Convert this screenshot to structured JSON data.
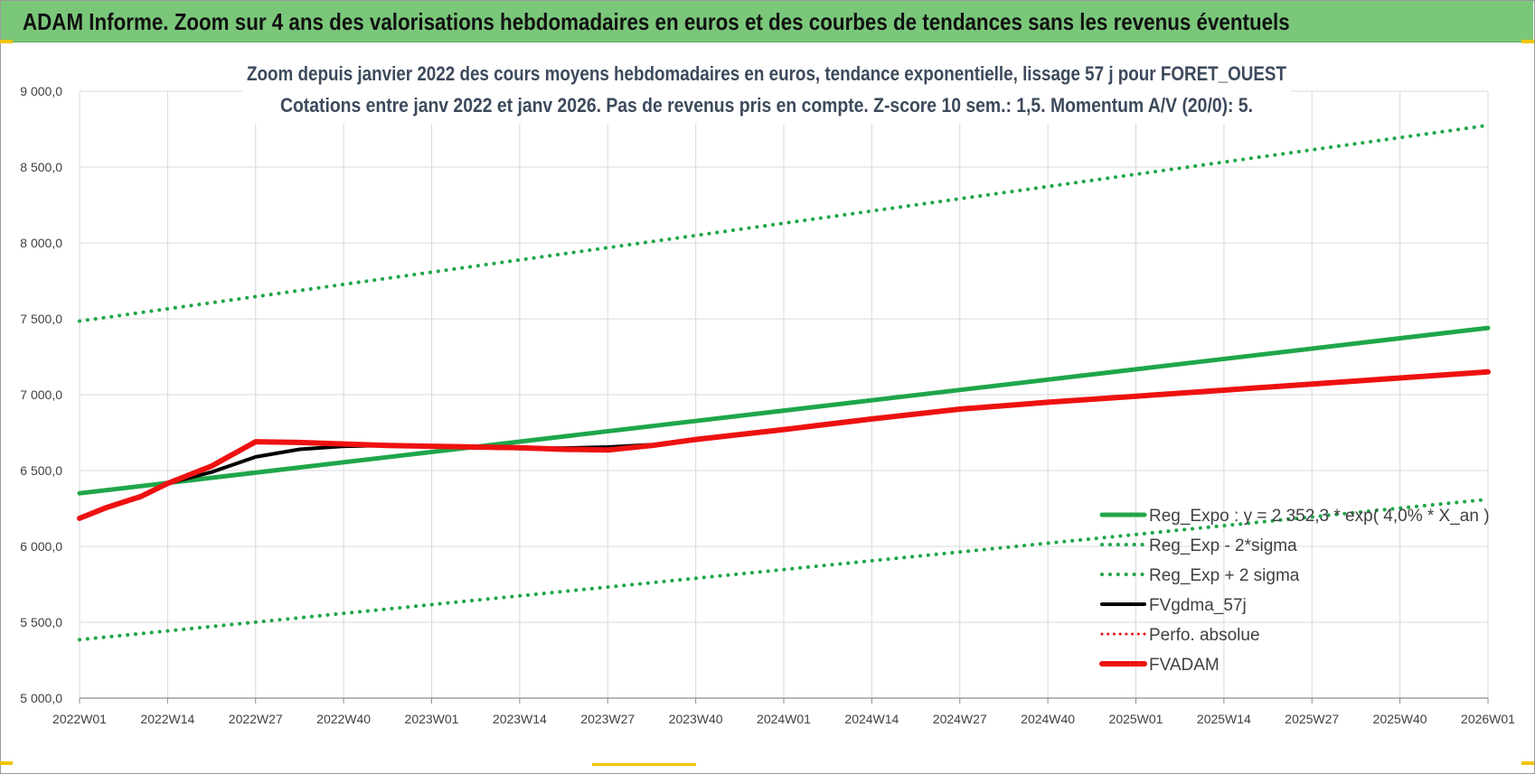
{
  "banner": {
    "title": "ADAM Informe. Zoom sur 4 ans des valorisations hebdomadaires en euros et des courbes de tendances sans les revenus éventuels"
  },
  "chart_data": {
    "type": "line",
    "title": [
      "Zoom depuis janvier 2022 des cours moyens hebdomadaires en euros, tendance exponentielle, lissage 57 j pour FORET_OUEST",
      "Cotations entre janv 2022 et janv 2026. Pas de revenus pris en compte. Z-score 10 sem.: 1,5. Momentum A/V (20/0): 5."
    ],
    "x_categories": [
      "2022W01",
      "2022W14",
      "2022W27",
      "2022W40",
      "2023W01",
      "2023W14",
      "2023W27",
      "2023W40",
      "2024W01",
      "2024W14",
      "2024W27",
      "2024W40",
      "2025W01",
      "2025W14",
      "2025W27",
      "2025W40",
      "2026W01"
    ],
    "y_ticks": [
      "5 000,0",
      "5 500,0",
      "6 000,0",
      "6 500,0",
      "7 000,0",
      "7 500,0",
      "8 000,0",
      "8 500,0",
      "9 000,0"
    ],
    "ylim": [
      5000,
      9000
    ],
    "grid": true,
    "legend_position": "right",
    "series": [
      {
        "name": "Reg_Expo : y = 2 352,3 * exp( 4,0% * X_an )",
        "style": "solid",
        "color": "#1fa64a",
        "width": 5,
        "points": [
          [
            0,
            6350
          ],
          [
            16,
            7440
          ]
        ]
      },
      {
        "name": "Reg_Exp - 2*sigma",
        "style": "dotted",
        "color": "#1fa64a",
        "width": 4,
        "points": [
          [
            0,
            5385
          ],
          [
            16,
            6310
          ]
        ]
      },
      {
        "name": "Reg_Exp + 2 sigma",
        "style": "dotted",
        "color": "#1fa64a",
        "width": 4,
        "points": [
          [
            0,
            7485
          ],
          [
            16,
            8775
          ]
        ]
      },
      {
        "name": "FVgdma_57j",
        "style": "solid",
        "color": "#000000",
        "width": 4,
        "points": [
          [
            1,
            6415
          ],
          [
            1.5,
            6490
          ],
          [
            2,
            6590
          ],
          [
            2.5,
            6640
          ],
          [
            3,
            6660
          ],
          [
            3.5,
            6665
          ],
          [
            4,
            6660
          ],
          [
            4.5,
            6650
          ],
          [
            5,
            6645
          ],
          [
            5.5,
            6648
          ],
          [
            6,
            6655
          ],
          [
            6.5,
            6670
          ]
        ]
      },
      {
        "name": "Perfo. absolue",
        "style": "dotted",
        "color": "#e81010",
        "width": 3,
        "points": []
      },
      {
        "name": "FVADAM",
        "style": "solid",
        "color": "#ee1111",
        "width": 6,
        "points": [
          [
            0,
            6185
          ],
          [
            0.3,
            6255
          ],
          [
            0.7,
            6330
          ],
          [
            1,
            6415
          ],
          [
            1.5,
            6530
          ],
          [
            2,
            6690
          ],
          [
            2.5,
            6685
          ],
          [
            3,
            6675
          ],
          [
            3.5,
            6665
          ],
          [
            4,
            6660
          ],
          [
            4.5,
            6655
          ],
          [
            5,
            6650
          ],
          [
            5.5,
            6640
          ],
          [
            6,
            6635
          ],
          [
            6.5,
            6665
          ],
          [
            7,
            6705
          ],
          [
            8,
            6770
          ],
          [
            9,
            6840
          ],
          [
            10,
            6905
          ],
          [
            11,
            6950
          ],
          [
            12,
            6990
          ],
          [
            13,
            7030
          ],
          [
            14,
            7070
          ],
          [
            15,
            7110
          ],
          [
            16,
            7150
          ]
        ]
      }
    ]
  }
}
